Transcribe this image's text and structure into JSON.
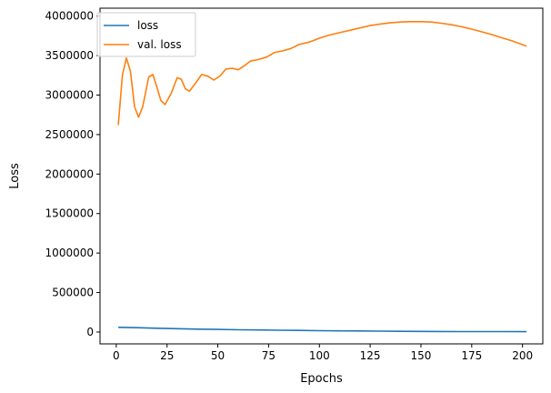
{
  "chart_data": {
    "type": "line",
    "title": "",
    "xlabel": "Epochs",
    "ylabel": "Loss",
    "xlim": [
      -8,
      210
    ],
    "ylim": [
      -150000,
      4100000
    ],
    "x_ticks": [
      0,
      25,
      50,
      75,
      100,
      125,
      150,
      175,
      200
    ],
    "y_ticks": [
      0,
      500000,
      1000000,
      1500000,
      2000000,
      2500000,
      3000000,
      3500000,
      4000000
    ],
    "x_tick_labels": [
      "0",
      "25",
      "50",
      "75",
      "100",
      "125",
      "150",
      "175",
      "200"
    ],
    "y_tick_labels": [
      "0",
      "500000",
      "1000000",
      "1500000",
      "2000000",
      "2500000",
      "3000000",
      "3500000",
      "4000000"
    ],
    "legend": {
      "placement": "upper-left",
      "entries": [
        "loss",
        "val. loss"
      ]
    },
    "grid": false,
    "series": [
      {
        "name": "loss",
        "color": "#1f77b4",
        "points": [
          [
            1,
            60000
          ],
          [
            10,
            55000
          ],
          [
            20,
            48000
          ],
          [
            30,
            42000
          ],
          [
            40,
            37000
          ],
          [
            50,
            33000
          ],
          [
            60,
            29000
          ],
          [
            70,
            26000
          ],
          [
            80,
            23000
          ],
          [
            90,
            20000
          ],
          [
            100,
            17000
          ],
          [
            110,
            15000
          ],
          [
            120,
            13000
          ],
          [
            130,
            11000
          ],
          [
            140,
            9500
          ],
          [
            150,
            8000
          ],
          [
            160,
            7000
          ],
          [
            170,
            6000
          ],
          [
            180,
            5500
          ],
          [
            190,
            5000
          ],
          [
            202,
            4500
          ]
        ]
      },
      {
        "name": "val. loss",
        "color": "#ff7f0e",
        "points": [
          [
            1,
            2620000
          ],
          [
            3,
            3250000
          ],
          [
            5,
            3470000
          ],
          [
            7,
            3300000
          ],
          [
            9,
            2850000
          ],
          [
            11,
            2720000
          ],
          [
            13,
            2850000
          ],
          [
            16,
            3230000
          ],
          [
            18,
            3260000
          ],
          [
            20,
            3100000
          ],
          [
            22,
            2930000
          ],
          [
            24,
            2880000
          ],
          [
            27,
            3020000
          ],
          [
            30,
            3220000
          ],
          [
            32,
            3200000
          ],
          [
            34,
            3080000
          ],
          [
            36,
            3050000
          ],
          [
            39,
            3150000
          ],
          [
            42,
            3260000
          ],
          [
            45,
            3240000
          ],
          [
            48,
            3190000
          ],
          [
            51,
            3240000
          ],
          [
            54,
            3330000
          ],
          [
            57,
            3340000
          ],
          [
            60,
            3320000
          ],
          [
            63,
            3370000
          ],
          [
            66,
            3430000
          ],
          [
            70,
            3450000
          ],
          [
            74,
            3480000
          ],
          [
            78,
            3540000
          ],
          [
            82,
            3560000
          ],
          [
            86,
            3590000
          ],
          [
            90,
            3640000
          ],
          [
            95,
            3670000
          ],
          [
            100,
            3720000
          ],
          [
            105,
            3760000
          ],
          [
            110,
            3790000
          ],
          [
            115,
            3820000
          ],
          [
            120,
            3850000
          ],
          [
            125,
            3880000
          ],
          [
            130,
            3900000
          ],
          [
            135,
            3915000
          ],
          [
            140,
            3925000
          ],
          [
            145,
            3930000
          ],
          [
            150,
            3930000
          ],
          [
            155,
            3925000
          ],
          [
            160,
            3910000
          ],
          [
            165,
            3890000
          ],
          [
            170,
            3865000
          ],
          [
            175,
            3835000
          ],
          [
            180,
            3800000
          ],
          [
            185,
            3765000
          ],
          [
            190,
            3725000
          ],
          [
            195,
            3685000
          ],
          [
            202,
            3620000
          ]
        ]
      }
    ]
  }
}
